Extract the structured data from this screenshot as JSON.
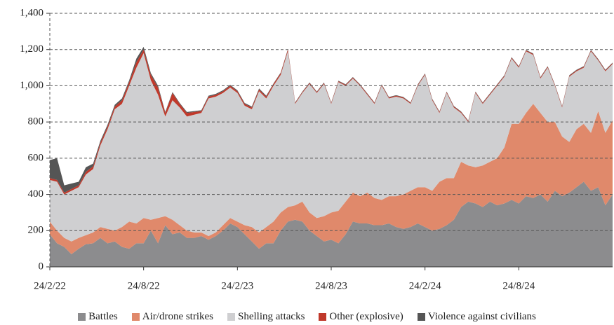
{
  "chart_data": {
    "type": "stacked_area",
    "categories": [
      "24/2/22",
      null,
      null,
      null,
      null,
      null,
      null,
      null,
      null,
      null,
      null,
      null,
      null,
      "24/8/22",
      null,
      null,
      null,
      null,
      null,
      null,
      null,
      null,
      null,
      null,
      null,
      null,
      "24/2/23",
      null,
      null,
      null,
      null,
      null,
      null,
      null,
      null,
      null,
      null,
      null,
      null,
      "24/8/23",
      null,
      null,
      null,
      null,
      null,
      null,
      null,
      null,
      null,
      null,
      null,
      null,
      "24/2/24",
      null,
      null,
      null,
      null,
      null,
      null,
      null,
      null,
      null,
      null,
      null,
      null,
      "24/8/24",
      null,
      null,
      null,
      null,
      null,
      null,
      null,
      null,
      null,
      null,
      null,
      null,
      null
    ],
    "series": [
      {
        "name": "Battles",
        "color": "#8c8c8e",
        "values": [
          180,
          130,
          110,
          70,
          100,
          125,
          130,
          160,
          130,
          140,
          110,
          100,
          130,
          130,
          200,
          130,
          230,
          180,
          190,
          160,
          160,
          170,
          150,
          170,
          200,
          240,
          220,
          180,
          140,
          100,
          130,
          130,
          200,
          250,
          260,
          250,
          200,
          170,
          140,
          150,
          130,
          180,
          250,
          240,
          240,
          230,
          230,
          240,
          220,
          210,
          220,
          240,
          220,
          200,
          210,
          230,
          260,
          330,
          360,
          350,
          330,
          360,
          340,
          350,
          370,
          350,
          390,
          380,
          400,
          360,
          420,
          390,
          410,
          440,
          470,
          420,
          440,
          340,
          400
        ]
      },
      {
        "name": "Air/drone strikes",
        "color": "#e0896b",
        "values": [
          70,
          70,
          50,
          70,
          60,
          50,
          60,
          60,
          80,
          60,
          110,
          150,
          110,
          140,
          60,
          140,
          50,
          80,
          40,
          40,
          30,
          20,
          20,
          20,
          30,
          30,
          30,
          50,
          80,
          90,
          90,
          120,
          100,
          80,
          80,
          110,
          100,
          100,
          140,
          150,
          180,
          180,
          160,
          150,
          170,
          150,
          140,
          150,
          170,
          190,
          200,
          200,
          220,
          220,
          260,
          260,
          230,
          250,
          200,
          200,
          230,
          220,
          260,
          310,
          420,
          440,
          460,
          520,
          450,
          440,
          380,
          330,
          280,
          320,
          320,
          320,
          420,
          400,
          410
        ]
      },
      {
        "name": "Shelling attacks",
        "color": "#cfcfd1",
        "values": [
          230,
          270,
          240,
          280,
          280,
          335,
          350,
          450,
          550,
          670,
          680,
          750,
          860,
          910,
          770,
          680,
          550,
          660,
          650,
          630,
          650,
          660,
          760,
          750,
          730,
          720,
          710,
          660,
          650,
          780,
          710,
          750,
          760,
          860,
          560,
          600,
          710,
          690,
          730,
          600,
          710,
          640,
          630,
          610,
          540,
          520,
          630,
          540,
          550,
          530,
          480,
          560,
          620,
          500,
          380,
          470,
          390,
          270,
          240,
          410,
          340,
          370,
          400,
          390,
          360,
          310,
          340,
          270,
          190,
          300,
          200,
          160,
          360,
          320,
          310,
          450,
          280,
          340,
          310
        ]
      },
      {
        "name": "Other (explosive)",
        "color": "#c0392b",
        "values": [
          10,
          10,
          10,
          10,
          10,
          15,
          15,
          15,
          15,
          15,
          20,
          20,
          30,
          20,
          30,
          40,
          20,
          40,
          20,
          20,
          15,
          10,
          10,
          10,
          10,
          10,
          10,
          10,
          10,
          10,
          10,
          10,
          10,
          10,
          5,
          5,
          5,
          5,
          5,
          5,
          5,
          5,
          5,
          5,
          5,
          5,
          5,
          5,
          5,
          5,
          5,
          5,
          5,
          5,
          5,
          5,
          5,
          5,
          5,
          5,
          5,
          5,
          5,
          5,
          5,
          5,
          5,
          5,
          5,
          5,
          5,
          5,
          5,
          5,
          5,
          5,
          5,
          5,
          5
        ]
      },
      {
        "name": "Violence against civilians",
        "color": "#555555",
        "values": [
          100,
          120,
          40,
          30,
          20,
          25,
          15,
          10,
          10,
          10,
          10,
          10,
          20,
          15,
          10,
          10,
          5,
          5,
          5,
          5,
          5,
          5,
          5,
          5,
          5,
          5,
          5,
          5,
          5,
          5,
          5,
          3,
          3,
          3,
          3,
          3,
          3,
          3,
          3,
          3,
          3,
          3,
          3,
          3,
          3,
          3,
          3,
          3,
          3,
          3,
          3,
          3,
          3,
          3,
          3,
          3,
          3,
          3,
          3,
          3,
          3,
          3,
          3,
          3,
          3,
          3,
          3,
          3,
          3,
          3,
          3,
          3,
          3,
          3,
          3,
          3,
          3,
          3,
          3
        ]
      }
    ],
    "ylim": [
      0,
      1400
    ],
    "yticks": [
      0,
      200,
      400,
      600,
      800,
      {
        "value": 1000,
        "label": "1,000"
      },
      {
        "value": 1200,
        "label": "1,200"
      },
      {
        "value": 1400,
        "label": "1,400"
      }
    ],
    "grid": true
  }
}
